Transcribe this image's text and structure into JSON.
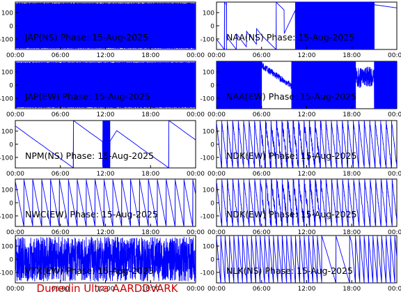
{
  "figure": {
    "footer": "Dunedin Ultra AARDDVARK",
    "footer_color": "#cc0000",
    "trace_color": "#0000ff"
  },
  "chart_data": [
    {
      "type": "line",
      "title": "JAP(NS) Phase: 15-Aug-2025",
      "pattern": "dense",
      "xticks": [
        "00:00",
        "06:00",
        "12:00",
        "18:00",
        "00:00"
      ],
      "yticks": [
        100,
        0,
        -100
      ],
      "ylim": [
        -180,
        180
      ],
      "xlim_hours": [
        0,
        24
      ]
    },
    {
      "type": "line",
      "title": "NAA(NS) Phase: 15-Aug-2025",
      "pattern": "naa_ns",
      "xticks": [
        "00:00",
        "06:00",
        "12:00",
        "18:00",
        "00:00"
      ],
      "yticks": [
        100,
        0,
        -100
      ],
      "ylim": [
        -180,
        180
      ],
      "xlim_hours": [
        0,
        24
      ]
    },
    {
      "type": "line",
      "title": "JAP(EW) Phase: 15-Aug-2025",
      "pattern": "dense",
      "xticks": [
        "00:00",
        "06:00",
        "12:00",
        "18:00",
        "00:00"
      ],
      "yticks": [
        100,
        0,
        -100
      ],
      "ylim": [
        -180,
        180
      ],
      "xlim_hours": [
        0,
        24
      ]
    },
    {
      "type": "line",
      "title": "NAA(EW) Phase: 15-Aug-2025",
      "pattern": "naa_ew",
      "xticks": [
        "00:00",
        "06:00",
        "12:00",
        "18:00",
        "00:00"
      ],
      "yticks": [
        100,
        0,
        -100
      ],
      "ylim": [
        -180,
        180
      ],
      "xlim_hours": [
        0,
        24
      ]
    },
    {
      "type": "line",
      "title": "NPM(NS) Phase: 15-Aug-2025",
      "pattern": "npm",
      "xticks": [
        "00:00",
        "06:00",
        "12:00",
        "18:00",
        "00:00"
      ],
      "yticks": [
        100,
        0,
        -100
      ],
      "ylim": [
        -180,
        180
      ],
      "xlim_hours": [
        0,
        24
      ]
    },
    {
      "type": "line",
      "title": "NDK(EW) Phase: 15-Aug-2025",
      "pattern": "ndk",
      "xticks": [
        "00:00",
        "06:00",
        "12:00",
        "18:00",
        "00:00"
      ],
      "yticks": [
        100,
        0,
        -100
      ],
      "ylim": [
        -180,
        180
      ],
      "xlim_hours": [
        0,
        24
      ]
    },
    {
      "type": "line",
      "title": "NWC(EW) Phase: 15-Aug-2025",
      "pattern": "nwc",
      "xticks": [
        "00:00",
        "06:00",
        "12:00",
        "18:00",
        "00:00"
      ],
      "yticks": [
        100,
        0,
        -100
      ],
      "ylim": [
        -180,
        180
      ],
      "xlim_hours": [
        0,
        24
      ]
    },
    {
      "type": "line",
      "title": "NDK(EW) Phase: 15-Aug-2025",
      "pattern": "ndk",
      "xticks": [
        "00:00",
        "06:00",
        "12:00",
        "18:00",
        "00:00"
      ],
      "yticks": [
        100,
        0,
        -100
      ],
      "ylim": [
        -180,
        180
      ],
      "xlim_hours": [
        0,
        24
      ]
    },
    {
      "type": "line",
      "title": "VTX(EW) Phase: 15-Aug-2025",
      "pattern": "noise",
      "xticks": [
        "00:00",
        "06:00",
        "12:00",
        "18:00",
        "00:00"
      ],
      "yticks": [
        100,
        0,
        -100
      ],
      "ylim": [
        -180,
        180
      ],
      "xlim_hours": [
        0,
        24
      ]
    },
    {
      "type": "line",
      "title": "NLK(NS) Phase: 15-Aug-2025",
      "pattern": "nlk",
      "xticks": [
        "00:00",
        "06:00",
        "12:00",
        "18:00",
        "00:00"
      ],
      "yticks": [
        100,
        0,
        -100
      ],
      "ylim": [
        -180,
        180
      ],
      "xlim_hours": [
        0,
        24
      ]
    }
  ]
}
